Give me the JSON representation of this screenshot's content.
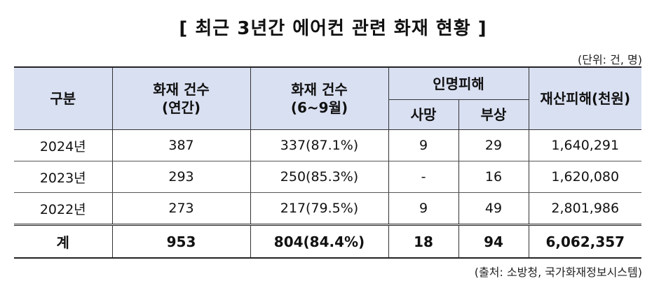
{
  "title": "[ 최근 3년간 에어컨 관련 화재 현황 ]",
  "unit_note": "(단위: 건, 명)",
  "source_note": "(출처: 소방청, 국가화재정보시스템)",
  "header": {
    "category": "구분",
    "fires_annual_line1": "화재 건수",
    "fires_annual_line2": "(연간)",
    "fires_summer_line1": "화재 건수",
    "fires_summer_line2": "(6~9월)",
    "casualties": "인명피해",
    "deaths": "사망",
    "injuries": "부상",
    "property_damage": "재산피해(천원)"
  },
  "rows": [
    {
      "year": "2024년",
      "fires_annual": "387",
      "fires_summer": "337(87.1%)",
      "deaths": "9",
      "injuries": "29",
      "property_damage": "1,640,291"
    },
    {
      "year": "2023년",
      "fires_annual": "293",
      "fires_summer": "250(85.3%)",
      "deaths": "-",
      "injuries": "16",
      "property_damage": "1,620,080"
    },
    {
      "year": "2022년",
      "fires_annual": "273",
      "fires_summer": "217(79.5%)",
      "deaths": "9",
      "injuries": "49",
      "property_damage": "2,801,986"
    }
  ],
  "total": {
    "label": "계",
    "fires_annual": "953",
    "fires_summer": "804(84.4%)",
    "deaths": "18",
    "injuries": "94",
    "property_damage": "6,062,357"
  },
  "colors": {
    "header_bg": "#d9e0f2"
  }
}
